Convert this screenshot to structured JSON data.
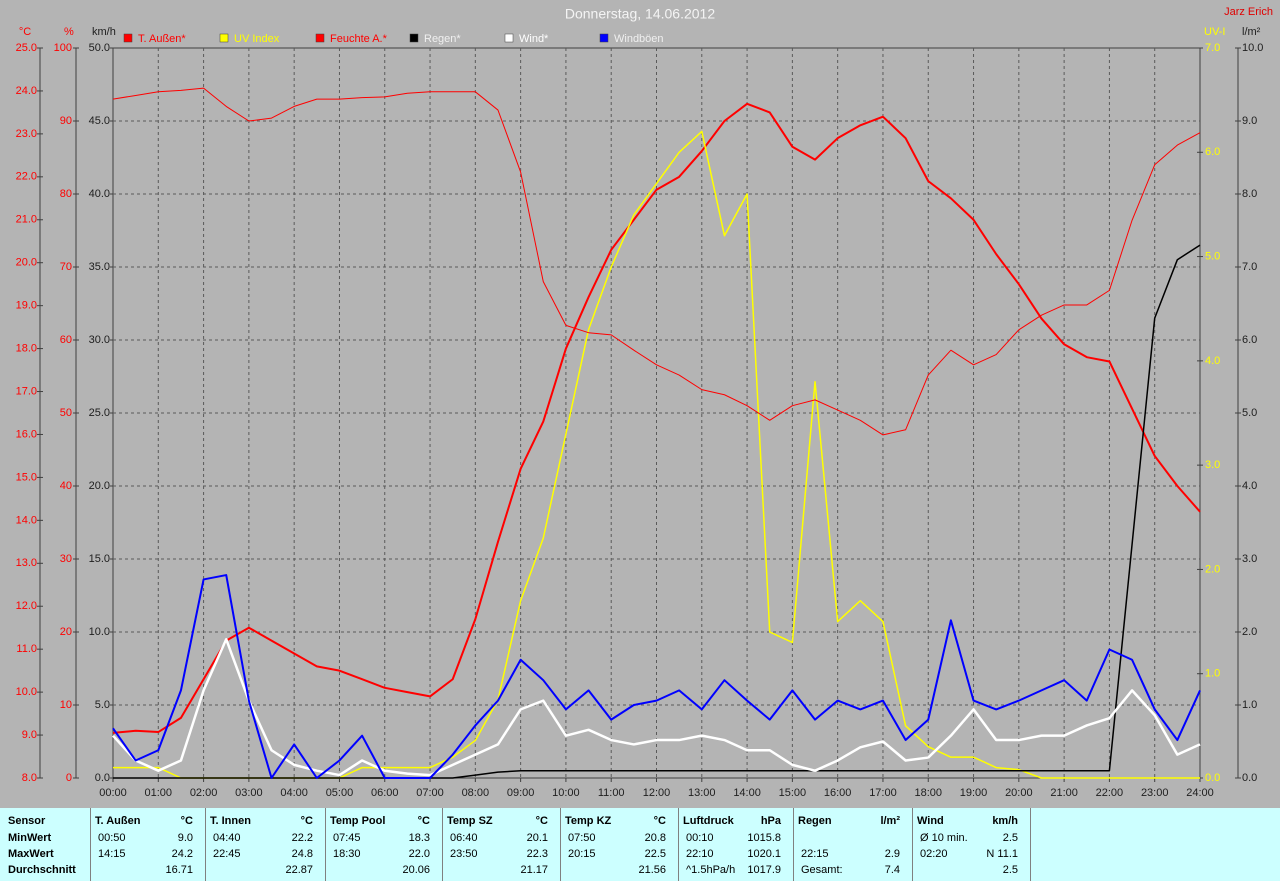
{
  "chart_data": {
    "type": "line",
    "title": "Donnerstag, 14.06.2012",
    "author": "Jarz Erich",
    "x": [
      0,
      0.5,
      1,
      1.5,
      2,
      2.5,
      3,
      3.5,
      4,
      4.5,
      5,
      5.5,
      6,
      6.5,
      7,
      7.5,
      8,
      8.5,
      9,
      9.5,
      10,
      10.5,
      11,
      11.5,
      12,
      12.5,
      13,
      13.5,
      14,
      14.5,
      15,
      15.5,
      16,
      16.5,
      17,
      17.5,
      18,
      18.5,
      19,
      19.5,
      20,
      20.5,
      21,
      21.5,
      22,
      22.5,
      23,
      23.5,
      24
    ],
    "xlim": [
      0,
      24
    ],
    "xticks": [
      {
        "value": 0,
        "label": "00:00"
      },
      {
        "value": 1,
        "label": "01:00"
      },
      {
        "value": 2,
        "label": "02:00"
      },
      {
        "value": 3,
        "label": "03:00"
      },
      {
        "value": 4,
        "label": "04:00"
      },
      {
        "value": 5,
        "label": "05:00"
      },
      {
        "value": 6,
        "label": "06:00"
      },
      {
        "value": 7,
        "label": "07:00"
      },
      {
        "value": 8,
        "label": "08:00"
      },
      {
        "value": 9,
        "label": "09:00"
      },
      {
        "value": 10,
        "label": "10:00"
      },
      {
        "value": 11,
        "label": "11:00"
      },
      {
        "value": 12,
        "label": "12:00"
      },
      {
        "value": 13,
        "label": "13:00"
      },
      {
        "value": 14,
        "label": "14:00"
      },
      {
        "value": 15,
        "label": "15:00"
      },
      {
        "value": 16,
        "label": "16:00"
      },
      {
        "value": 17,
        "label": "17:00"
      },
      {
        "value": 18,
        "label": "18:00"
      },
      {
        "value": 19,
        "label": "19:00"
      },
      {
        "value": 20,
        "label": "20:00"
      },
      {
        "value": 21,
        "label": "21:00"
      },
      {
        "value": 22,
        "label": "22:00"
      },
      {
        "value": 23,
        "label": "23:00"
      },
      {
        "value": 24,
        "label": "24:00"
      }
    ],
    "grid": true,
    "axes": [
      {
        "label": "°C",
        "color": "#ff0000",
        "lim": [
          8,
          25
        ],
        "ticks": [
          {
            "value": 8,
            "label": "8.0"
          },
          {
            "value": 9,
            "label": "9.0"
          },
          {
            "value": 10,
            "label": "10.0"
          },
          {
            "value": 11,
            "label": "11.0"
          },
          {
            "value": 12,
            "label": "12.0"
          },
          {
            "value": 13,
            "label": "13.0"
          },
          {
            "value": 14,
            "label": "14.0"
          },
          {
            "value": 15,
            "label": "15.0"
          },
          {
            "value": 16,
            "label": "16.0"
          },
          {
            "value": 17,
            "label": "17.0"
          },
          {
            "value": 18,
            "label": "18.0"
          },
          {
            "value": 19,
            "label": "19.0"
          },
          {
            "value": 20,
            "label": "20.0"
          },
          {
            "value": 21,
            "label": "21.0"
          },
          {
            "value": 22,
            "label": "22.0"
          },
          {
            "value": 23,
            "label": "23.0"
          },
          {
            "value": 24,
            "label": "24.0"
          },
          {
            "value": 25,
            "label": "25.0"
          }
        ]
      },
      {
        "label": "%",
        "color": "#ff0000",
        "lim": [
          0,
          100
        ],
        "ticks": [
          0,
          10,
          20,
          30,
          40,
          50,
          60,
          70,
          80,
          90,
          100
        ]
      },
      {
        "label": "km/h",
        "color": "#202020",
        "lim": [
          0,
          50
        ],
        "grid": true,
        "ticks": [
          {
            "value": 0,
            "label": "0.0"
          },
          {
            "value": 5,
            "label": "5.0"
          },
          {
            "value": 10,
            "label": "10.0"
          },
          {
            "value": 15,
            "label": "15.0"
          },
          {
            "value": 20,
            "label": "20.0"
          },
          {
            "value": 25,
            "label": "25.0"
          },
          {
            "value": 30,
            "label": "30.0"
          },
          {
            "value": 35,
            "label": "35.0"
          },
          {
            "value": 40,
            "label": "40.0"
          },
          {
            "value": 45,
            "label": "45.0"
          },
          {
            "value": 50,
            "label": "50.0"
          }
        ]
      },
      {
        "label": "UV-I",
        "color": "#ffff00",
        "lim": [
          0,
          7
        ],
        "ticks": [
          {
            "value": 0,
            "label": "0.0"
          },
          {
            "value": 1,
            "label": "1.0"
          },
          {
            "value": 2,
            "label": "2.0"
          },
          {
            "value": 3,
            "label": "3.0"
          },
          {
            "value": 4,
            "label": "4.0"
          },
          {
            "value": 5,
            "label": "5.0"
          },
          {
            "value": 6,
            "label": "6.0"
          },
          {
            "value": 7,
            "label": "7.0"
          }
        ]
      },
      {
        "label": "l/m²",
        "color": "#202020",
        "lim": [
          0,
          10
        ],
        "ticks": [
          {
            "value": 0,
            "label": "0.0"
          },
          {
            "value": 1,
            "label": "1.0"
          },
          {
            "value": 2,
            "label": "2.0"
          },
          {
            "value": 3,
            "label": "3.0"
          },
          {
            "value": 4,
            "label": "4.0"
          },
          {
            "value": 5,
            "label": "5.0"
          },
          {
            "value": 6,
            "label": "6.0"
          },
          {
            "value": 7,
            "label": "7.0"
          },
          {
            "value": 8,
            "label": "8.0"
          },
          {
            "value": 9,
            "label": "9.0"
          },
          {
            "value": 10,
            "label": "10.0"
          }
        ]
      }
    ],
    "series": [
      {
        "name": "T. Außen*",
        "color": "#ff0000",
        "axis": 0,
        "values": [
          9.05,
          9.1,
          9.07,
          9.4,
          10.3,
          11.2,
          11.5,
          11.2,
          10.9,
          10.6,
          10.5,
          10.3,
          10.1,
          10.0,
          9.9,
          10.3,
          11.7,
          13.5,
          15.2,
          16.3,
          18.0,
          19.2,
          20.3,
          21.0,
          21.7,
          22.0,
          22.6,
          23.3,
          23.7,
          23.5,
          22.7,
          22.4,
          22.9,
          23.2,
          23.4,
          22.9,
          21.9,
          21.5,
          21.0,
          20.2,
          19.5,
          18.7,
          18.1,
          17.8,
          17.7,
          16.6,
          15.5,
          14.8,
          14.2
        ]
      },
      {
        "name": "UV Index",
        "color": "#ffff00",
        "axis": 3,
        "values": [
          0.1,
          0.1,
          0.1,
          0,
          0,
          0,
          0,
          0,
          0,
          0,
          0,
          0.1,
          0.1,
          0.1,
          0.1,
          0.2,
          0.36,
          0.75,
          1.7,
          2.3,
          3.3,
          4.3,
          4.9,
          5.4,
          5.7,
          6.0,
          6.2,
          5.2,
          5.6,
          1.4,
          1.3,
          3.8,
          1.5,
          1.7,
          1.5,
          0.5,
          0.3,
          0.2,
          0.2,
          0.1,
          0.08,
          0,
          0,
          0,
          0,
          0,
          0,
          0,
          0
        ]
      },
      {
        "name": "Feuchte A.*",
        "color": "#ff0000",
        "axis": 1,
        "values": [
          93,
          93.5,
          94,
          94.2,
          94.5,
          92,
          90,
          90.4,
          92,
          93,
          93,
          93.2,
          93.3,
          93.8,
          94,
          94,
          94,
          91.5,
          83,
          68,
          62,
          61,
          60.7,
          58.6,
          56.6,
          55.2,
          53.2,
          52.5,
          51,
          49,
          51,
          51.8,
          50.4,
          49,
          47,
          47.7,
          55.2,
          58.6,
          56.6,
          58,
          61.4,
          63.4,
          64.8,
          64.8,
          66.8,
          76.4,
          84,
          86.7,
          88.4
        ]
      },
      {
        "name": "Regen*",
        "color": "#000000",
        "axis": 4,
        "values": [
          0,
          0,
          0,
          0,
          0,
          0,
          0,
          0,
          0,
          0,
          0,
          0,
          0,
          0,
          0,
          0,
          0.04,
          0.08,
          0.1,
          0.1,
          0.1,
          0.1,
          0.1,
          0.1,
          0.1,
          0.1,
          0.1,
          0.1,
          0.1,
          0.1,
          0.1,
          0.1,
          0.1,
          0.1,
          0.1,
          0.1,
          0.1,
          0.1,
          0.1,
          0.1,
          0.1,
          0.1,
          0.1,
          0.1,
          0.1,
          3.2,
          6.3,
          7.1,
          7.3
        ]
      },
      {
        "name": "Wind*",
        "color": "#ffffff",
        "axis": 2,
        "values": [
          2.9,
          1.2,
          0.5,
          1.2,
          6.0,
          9.5,
          5.3,
          1.9,
          0.9,
          0.5,
          0.2,
          1.2,
          0.5,
          0.3,
          0.2,
          0.9,
          1.6,
          2.3,
          4.7,
          5.3,
          2.9,
          3.3,
          2.6,
          2.3,
          2.6,
          2.6,
          2.9,
          2.6,
          1.9,
          1.9,
          0.9,
          0.5,
          1.2,
          2.1,
          2.5,
          1.2,
          1.4,
          2.9,
          4.7,
          2.6,
          2.6,
          2.9,
          2.9,
          3.6,
          4.1,
          6.0,
          4.3,
          1.6,
          2.3
        ]
      },
      {
        "name": "Windböen",
        "color": "#0000ff",
        "axis": 2,
        "values": [
          3.4,
          1.2,
          1.9,
          6.0,
          13.6,
          13.9,
          5.3,
          0,
          2.3,
          0,
          1.2,
          2.9,
          0,
          0,
          0,
          1.6,
          3.6,
          5.3,
          8.1,
          6.7,
          4.7,
          6,
          4,
          5,
          5.3,
          6,
          4.7,
          6.7,
          5.3,
          4,
          6,
          4,
          5.3,
          4.7,
          5.3,
          2.6,
          4,
          10.8,
          5.3,
          4.7,
          5.3,
          6,
          6.7,
          5.3,
          8.8,
          8.1,
          4.7,
          2.6,
          6
        ]
      }
    ]
  },
  "table": {
    "sensor": {
      "header": "Sensor",
      "rows": [
        "MinWert",
        "MaxWert",
        "Durchschnitt"
      ]
    },
    "columns": [
      {
        "title": "T. Außen",
        "unit": "°C",
        "rows": [
          {
            "time": "00:50",
            "value": "9.0"
          },
          {
            "time": "14:15",
            "value": "24.2"
          },
          {
            "value": "16.71"
          }
        ]
      },
      {
        "title": "T. Innen",
        "unit": "°C",
        "rows": [
          {
            "time": "04:40",
            "value": "22.2"
          },
          {
            "time": "22:45",
            "value": "24.8"
          },
          {
            "value": "22.87"
          }
        ]
      },
      {
        "title": "Temp Pool",
        "unit": "°C",
        "rows": [
          {
            "time": "07:45",
            "value": "18.3"
          },
          {
            "time": "18:30",
            "value": "22.0"
          },
          {
            "value": "20.06"
          }
        ]
      },
      {
        "title": "Temp SZ",
        "unit": "°C",
        "rows": [
          {
            "time": "06:40",
            "value": "20.1"
          },
          {
            "time": "23:50",
            "value": "22.3"
          },
          {
            "value": "21.17"
          }
        ]
      },
      {
        "title": "Temp KZ",
        "unit": "°C",
        "rows": [
          {
            "time": "07:50",
            "value": "20.8"
          },
          {
            "time": "20:15",
            "value": "22.5"
          },
          {
            "value": "21.56"
          }
        ]
      },
      {
        "title": "Luftdruck",
        "unit": "hPa",
        "rows": [
          {
            "time": "00:10",
            "value": "1015.8"
          },
          {
            "time": "22:10",
            "value": "1020.1"
          },
          {
            "time": "^1.5hPa/h",
            "value": "1017.9"
          }
        ]
      },
      {
        "title": "Regen",
        "unit": "l/m²",
        "rows": [
          {},
          {
            "time": "22:15",
            "value": "2.9"
          },
          {
            "time": "Gesamt:",
            "value": "7.4"
          }
        ]
      },
      {
        "title": "Wind",
        "unit": "km/h",
        "rows": [
          {
            "time": "Ø 10 min.",
            "value": "2.5"
          },
          {
            "time": "02:20",
            "value": "N 11.1"
          },
          {
            "value": "2.5"
          }
        ]
      }
    ]
  }
}
